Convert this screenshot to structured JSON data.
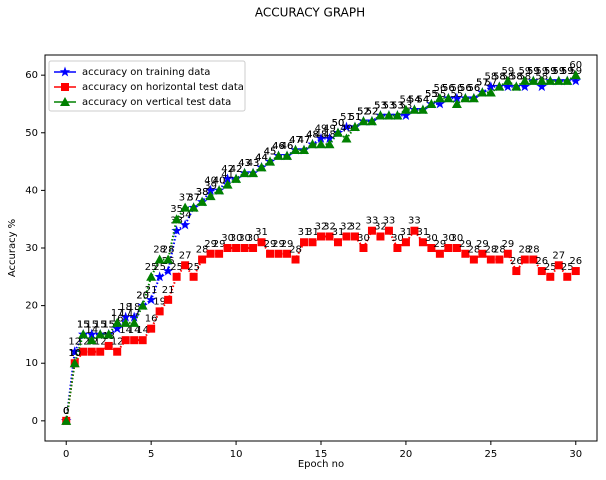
{
  "chart_data": {
    "type": "line",
    "title": "ACCURACY GRAPH",
    "x_label": "Epoch no",
    "y_label": "Accuracy %",
    "x": [
      0,
      0.5,
      1,
      1.5,
      2,
      2.5,
      3,
      3.5,
      4,
      4.5,
      5,
      5.5,
      6,
      6.5,
      7,
      7.5,
      8,
      8.5,
      9,
      9.5,
      10,
      10.5,
      11,
      11.5,
      12,
      12.5,
      13,
      13.5,
      14,
      14.5,
      15,
      15.5,
      16,
      16.5,
      17,
      17.5,
      18,
      18.5,
      19,
      19.5,
      20,
      20.5,
      21,
      21.5,
      22,
      22.5,
      23,
      23.5,
      24,
      24.5,
      25,
      25.5,
      26,
      26.5,
      27,
      27.5,
      28,
      28.5,
      29,
      29.5,
      30
    ],
    "series": [
      {
        "name": "accuracy on training data",
        "color": "#0000ff",
        "marker": "star",
        "values": [
          0,
          12,
          15,
          15,
          15,
          15,
          16,
          18,
          18,
          20,
          21,
          25,
          26,
          33,
          34,
          37,
          38,
          40,
          40,
          42,
          42,
          43,
          43,
          44,
          45,
          46,
          46,
          47,
          47,
          48,
          49,
          49,
          50,
          51,
          51,
          52,
          52,
          53,
          53,
          53,
          53,
          54,
          54,
          55,
          55,
          56,
          56,
          56,
          56,
          57,
          58,
          58,
          58,
          58,
          58,
          59,
          58,
          59,
          59,
          59,
          59
        ]
      },
      {
        "name": "accuracy on horizontal test data",
        "color": "#ff0000",
        "marker": "square",
        "values": [
          0,
          10,
          12,
          12,
          12,
          13,
          12,
          14,
          14,
          14,
          16,
          19,
          21,
          25,
          27,
          25,
          28,
          29,
          29,
          30,
          30,
          30,
          30,
          31,
          29,
          29,
          29,
          28,
          31,
          31,
          32,
          32,
          31,
          32,
          32,
          30,
          33,
          32,
          33,
          30,
          31,
          33,
          31,
          30,
          29,
          30,
          30,
          29,
          28,
          29,
          28,
          28,
          29,
          26,
          28,
          28,
          26,
          25,
          27,
          25,
          26
        ]
      },
      {
        "name": "accuracy on vertical test data",
        "color": "#008000",
        "marker": "triangle",
        "values": [
          0,
          10,
          15,
          14,
          15,
          15,
          17,
          17,
          17,
          20,
          25,
          28,
          28,
          35,
          37,
          37,
          38,
          39,
          40,
          41,
          42,
          43,
          43,
          44,
          45,
          46,
          46,
          47,
          47,
          48,
          48,
          48,
          50,
          49,
          51,
          52,
          52,
          53,
          53,
          53,
          54,
          54,
          54,
          55,
          56,
          56,
          55,
          56,
          56,
          57,
          57,
          58,
          59,
          58,
          59,
          59,
          59,
          59,
          59,
          59,
          60
        ]
      }
    ],
    "xlim": [
      -1.25,
      31.25
    ],
    "ylim": [
      -3.5,
      63.5
    ],
    "xticks": [
      0,
      5,
      10,
      15,
      20,
      25,
      30
    ],
    "yticks": [
      0,
      10,
      20,
      30,
      40,
      50,
      60
    ],
    "legend": "upper left",
    "grid": false
  }
}
